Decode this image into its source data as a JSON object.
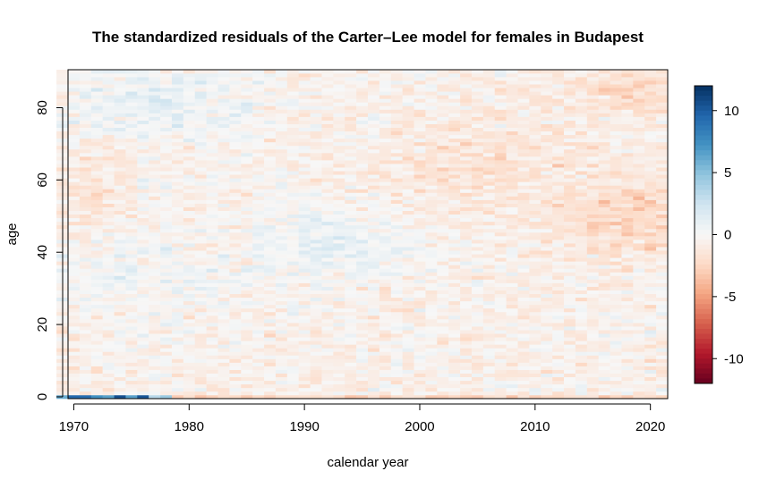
{
  "chart_data": {
    "type": "heatmap",
    "title": "The standardized residuals of the Carter–Lee model for females in Budapest",
    "xlabel": "calendar year",
    "ylabel": "age",
    "x_range": [
      1969,
      2021
    ],
    "y_range": [
      0,
      90
    ],
    "xlim": [
      1969.5,
      2021.5
    ],
    "ylim": [
      -0.5,
      90.5
    ],
    "x_ticks": [
      1970,
      1980,
      1990,
      2000,
      2010,
      2020
    ],
    "y_ticks": [
      0,
      20,
      40,
      60,
      80
    ],
    "colorbar": {
      "range": [
        -12,
        12
      ],
      "ticks": [
        10,
        5,
        0,
        -5,
        -10
      ],
      "palette": "RdBu",
      "colors": [
        "#67001f",
        "#b2182b",
        "#d6604d",
        "#f4a582",
        "#fddbc7",
        "#f7f7f7",
        "#d1e5f0",
        "#92c5de",
        "#4393c3",
        "#2166ac",
        "#053061"
      ]
    },
    "pattern_notes": "Residuals mostly within about ±3; strong positive residuals (up to ~10) at age 0 in the early 1970s; moderate positive cluster near ages 35–50 around 1990–2000 and ages 75–90 in the 1970s–80s; moderate negative residuals at older ages and ages 40–60 after 2010."
  }
}
